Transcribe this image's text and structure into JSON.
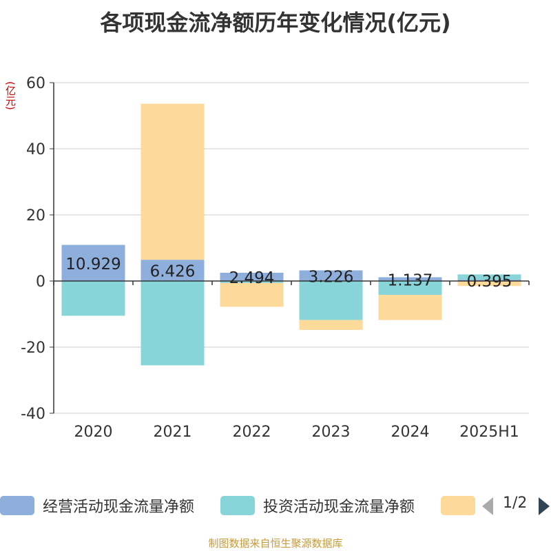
{
  "title": "各项现金流净额历年变化情况(亿元)",
  "y_unit": "(亿元)",
  "source_note": "制图数据来自恒生聚源数据库",
  "legend": {
    "items": [
      {
        "label": "经营活动现金流量净额",
        "color": "#8eaedc"
      },
      {
        "label": "投资活动现金流量净额",
        "color": "#87d5d8"
      },
      {
        "label": "",
        "color": "#fdd99a"
      }
    ],
    "pager": "1/2"
  },
  "chart_data": {
    "type": "bar",
    "stacked": true,
    "categories": [
      "2020",
      "2021",
      "2022",
      "2023",
      "2024",
      "2025H1"
    ],
    "ylim": [
      -40,
      60
    ],
    "yticks": [
      -40,
      -20,
      0,
      20,
      40,
      60
    ],
    "grid": true,
    "legend_position": "bottom",
    "series": [
      {
        "name": "经营活动现金流量净额",
        "color": "#8eaedc",
        "values": [
          10.929,
          6.426,
          2.494,
          3.226,
          1.137,
          0.395
        ],
        "labels": [
          "10.929",
          "6.426",
          "2.494",
          "3.226",
          "1.137",
          "0.395"
        ]
      },
      {
        "name": "投资活动现金流量净额",
        "color": "#87d5d8",
        "values": [
          -10.5,
          -25.5,
          -0.6,
          -11.8,
          -4.2,
          1.6
        ]
      },
      {
        "color": "#fdd99a",
        "values": [
          0,
          47.2,
          -7.2,
          -3.0,
          -7.6,
          -1.5
        ]
      }
    ]
  }
}
